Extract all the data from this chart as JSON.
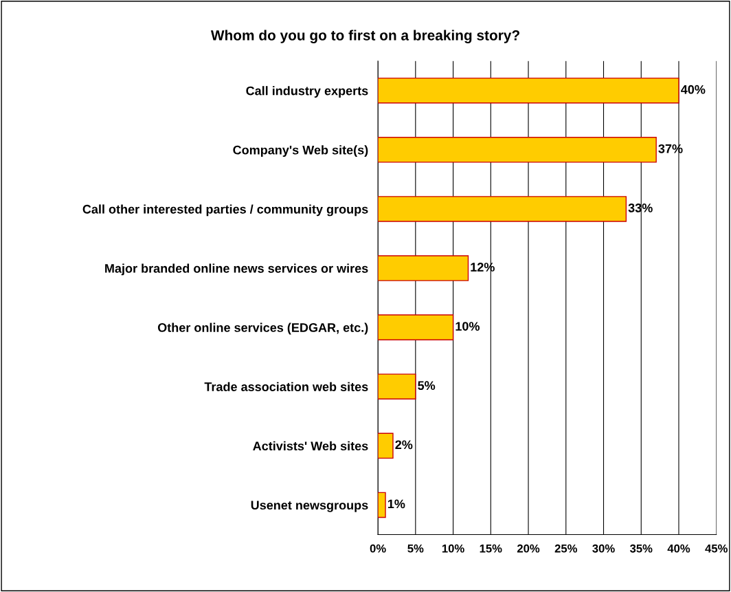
{
  "chart_data": {
    "type": "bar",
    "orientation": "horizontal",
    "title": "Whom do you go to first on a breaking story?",
    "categories": [
      "Call industry experts",
      "Company's Web site(s)",
      "Call other interested parties / community groups",
      "Major branded online news services or wires",
      "Other online services (EDGAR, etc.)",
      "Trade association web sites",
      "Activists' Web sites",
      "Usenet newsgroups"
    ],
    "values": [
      40,
      37,
      33,
      12,
      10,
      5,
      2,
      1
    ],
    "color": "#ffcc00",
    "xlim": [
      0,
      45
    ],
    "xticks": [
      {
        "value": 0,
        "label": "0%"
      },
      {
        "value": 5,
        "label": "5%"
      },
      {
        "value": 10,
        "label": "10%"
      },
      {
        "value": 15,
        "label": "15%"
      },
      {
        "value": 20,
        "label": "20%"
      },
      {
        "value": 25,
        "label": "25%"
      },
      {
        "value": 30,
        "label": "30%"
      },
      {
        "value": 35,
        "label": "35%"
      },
      {
        "value": 40,
        "label": "40%"
      },
      {
        "value": 45,
        "label": "45%"
      }
    ],
    "value_labels": [
      "40%",
      "37%",
      "33%",
      "12%",
      "10%",
      "5%",
      "2%",
      "1%"
    ],
    "grid": "x"
  }
}
